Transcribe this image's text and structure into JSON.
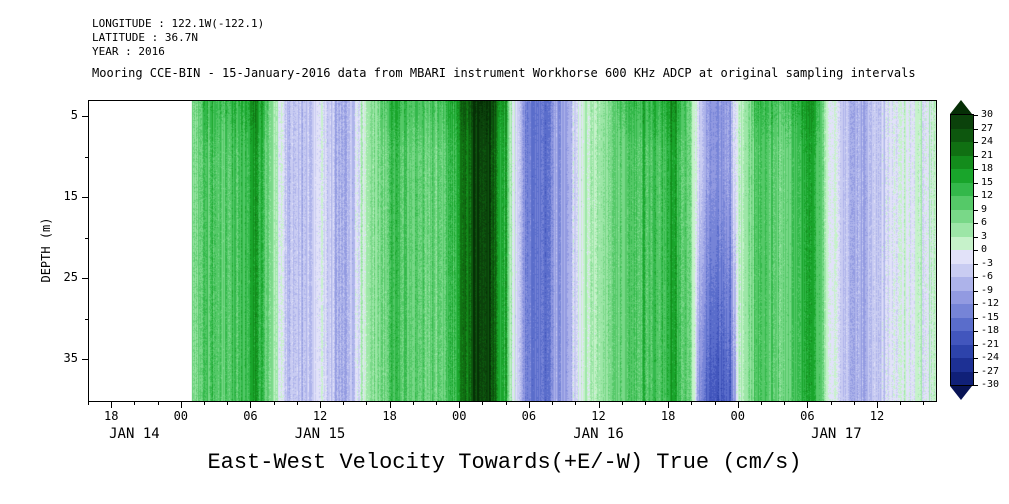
{
  "header": {
    "lines": [
      "LONGITUDE : 122.1W(-122.1)",
      "LATITUDE : 36.7N",
      "YEAR : 2016"
    ]
  },
  "chart_data": {
    "type": "heatmap",
    "title": "Mooring CCE-BIN - 15-January-2016 data from MBARI instrument Workhorse 600 KHz ADCP at original sampling intervals",
    "bottom_label": "East-West Velocity Towards(+E/-W) True (cm/s)",
    "x_axis": {
      "span_hours": 73,
      "start": "JAN 14 16:00",
      "end": "JAN 17 17:00",
      "ticks": [
        {
          "hour": 2,
          "label": "18"
        },
        {
          "hour": 8,
          "label": "00"
        },
        {
          "hour": 14,
          "label": "06"
        },
        {
          "hour": 20,
          "label": "12"
        },
        {
          "hour": 26,
          "label": "18"
        },
        {
          "hour": 32,
          "label": "00"
        },
        {
          "hour": 38,
          "label": "06"
        },
        {
          "hour": 44,
          "label": "12"
        },
        {
          "hour": 50,
          "label": "18"
        },
        {
          "hour": 56,
          "label": "00"
        },
        {
          "hour": 62,
          "label": "06"
        },
        {
          "hour": 68,
          "label": "12"
        }
      ],
      "day_labels": [
        {
          "hour": 4,
          "label": "JAN 14"
        },
        {
          "hour": 20,
          "label": "JAN 15"
        },
        {
          "hour": 44,
          "label": "JAN 16"
        },
        {
          "hour": 64.5,
          "label": "JAN 17"
        }
      ],
      "minor_tick_every_hours": 2
    },
    "y_axis": {
      "label": "DEPTH (m)",
      "min_depth_m": 3,
      "max_depth_m": 40,
      "major_ticks": [
        5,
        15,
        25,
        35
      ],
      "minor_ticks": [
        10,
        20,
        30
      ]
    },
    "levels": {
      "min": -30,
      "max": 30,
      "step": 3,
      "labels": [
        "30",
        "27",
        "24",
        "21",
        "18",
        "15",
        "12",
        "9",
        "6",
        "3",
        "0",
        "-3",
        "-6",
        "-9",
        "-12",
        "-15",
        "-18",
        "-21",
        "-24",
        "-27",
        "-30"
      ]
    },
    "palette": {
      "over": "#062f06",
      "under": "#081355",
      "segments_top_to_bottom": [
        "#0b420b",
        "#0d570e",
        "#107012",
        "#138c1c",
        "#19a52b",
        "#33b84a",
        "#55c968",
        "#79d888",
        "#9de6a7",
        "#c6f2ca",
        "#e2e2f9",
        "#c9ccf2",
        "#adb3ea",
        "#929ae1",
        "#7684d7",
        "#5a6dcb",
        "#4256bd",
        "#2d43ab",
        "#1d3094",
        "#102078"
      ]
    },
    "heatmap": {
      "units": "cm/s",
      "data_start_hour": 8.8,
      "first_sample_hour": 9,
      "hour_step": 1,
      "mean_velocity_by_hour": [
        6,
        9,
        12,
        10,
        14,
        17,
        11,
        3,
        -4,
        -7,
        -6,
        -2,
        -5,
        -6,
        -3,
        4,
        8,
        12,
        9,
        8,
        9,
        8,
        11,
        19,
        26,
        28,
        23,
        9,
        -7,
        -15,
        -17,
        -12,
        -7,
        -4,
        2,
        5,
        7,
        9,
        11,
        9,
        12,
        16,
        12,
        3,
        -8,
        -12,
        -9,
        3,
        8,
        10,
        9,
        8,
        12,
        16,
        8,
        0,
        -5,
        -8,
        -7,
        -6,
        -3,
        1,
        -1,
        1,
        -2
      ],
      "deep_enhancement": [
        {
          "hours": [
            52,
            56.5
          ],
          "per_meter_below_12m": -0.28
        }
      ]
    }
  }
}
